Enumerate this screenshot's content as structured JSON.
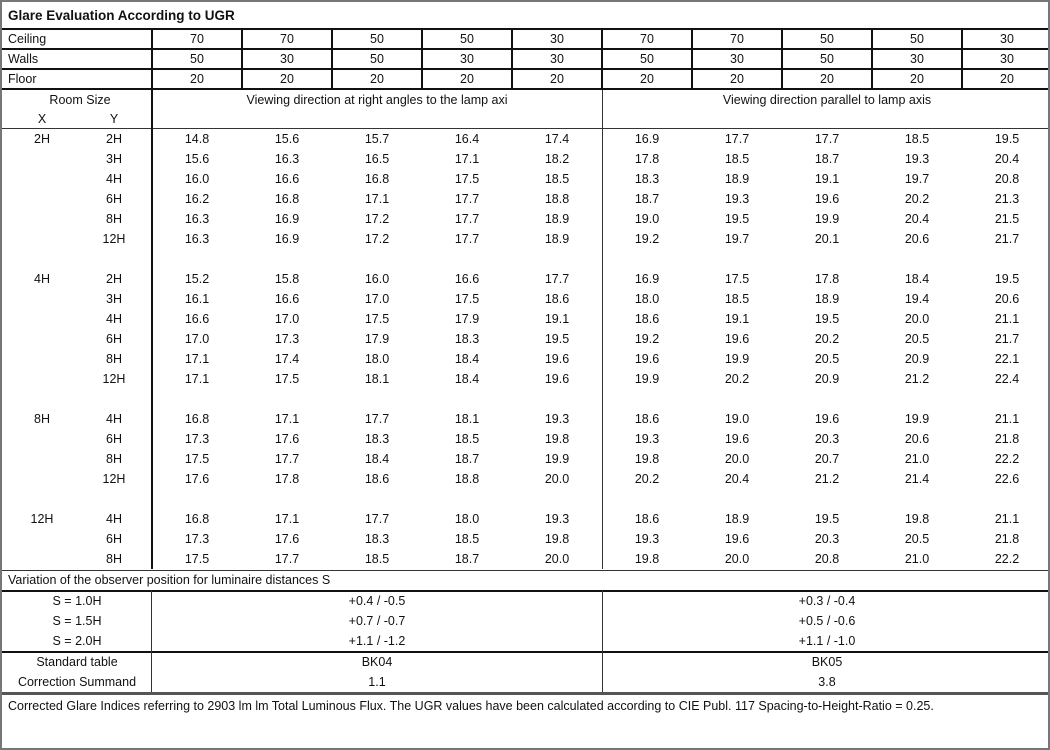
{
  "title": "Glare Evaluation According to UGR",
  "reflectances": [
    {
      "label": "Ceiling",
      "values": [
        "70",
        "70",
        "50",
        "50",
        "30",
        "70",
        "70",
        "50",
        "50",
        "30"
      ]
    },
    {
      "label": "Walls",
      "values": [
        "50",
        "30",
        "50",
        "30",
        "30",
        "50",
        "30",
        "50",
        "30",
        "30"
      ]
    },
    {
      "label": "Floor",
      "values": [
        "20",
        "20",
        "20",
        "20",
        "20",
        "20",
        "20",
        "20",
        "20",
        "20"
      ]
    }
  ],
  "header": {
    "room_size": "Room Size",
    "x": "X",
    "y": "Y",
    "dir_right": "Viewing direction at right angles to the lamp axi",
    "dir_parallel": "Viewing direction parallel to lamp axis"
  },
  "groups": [
    {
      "x": "2H",
      "rows": [
        {
          "y": "2H",
          "v": [
            "14.8",
            "15.6",
            "15.7",
            "16.4",
            "17.4",
            "16.9",
            "17.7",
            "17.7",
            "18.5",
            "19.5"
          ]
        },
        {
          "y": "3H",
          "v": [
            "15.6",
            "16.3",
            "16.5",
            "17.1",
            "18.2",
            "17.8",
            "18.5",
            "18.7",
            "19.3",
            "20.4"
          ]
        },
        {
          "y": "4H",
          "v": [
            "16.0",
            "16.6",
            "16.8",
            "17.5",
            "18.5",
            "18.3",
            "18.9",
            "19.1",
            "19.7",
            "20.8"
          ]
        },
        {
          "y": "6H",
          "v": [
            "16.2",
            "16.8",
            "17.1",
            "17.7",
            "18.8",
            "18.7",
            "19.3",
            "19.6",
            "20.2",
            "21.3"
          ]
        },
        {
          "y": "8H",
          "v": [
            "16.3",
            "16.9",
            "17.2",
            "17.7",
            "18.9",
            "19.0",
            "19.5",
            "19.9",
            "20.4",
            "21.5"
          ]
        },
        {
          "y": "12H",
          "v": [
            "16.3",
            "16.9",
            "17.2",
            "17.7",
            "18.9",
            "19.2",
            "19.7",
            "20.1",
            "20.6",
            "21.7"
          ]
        }
      ]
    },
    {
      "x": "4H",
      "rows": [
        {
          "y": "2H",
          "v": [
            "15.2",
            "15.8",
            "16.0",
            "16.6",
            "17.7",
            "16.9",
            "17.5",
            "17.8",
            "18.4",
            "19.5"
          ]
        },
        {
          "y": "3H",
          "v": [
            "16.1",
            "16.6",
            "17.0",
            "17.5",
            "18.6",
            "18.0",
            "18.5",
            "18.9",
            "19.4",
            "20.6"
          ]
        },
        {
          "y": "4H",
          "v": [
            "16.6",
            "17.0",
            "17.5",
            "17.9",
            "19.1",
            "18.6",
            "19.1",
            "19.5",
            "20.0",
            "21.1"
          ]
        },
        {
          "y": "6H",
          "v": [
            "17.0",
            "17.3",
            "17.9",
            "18.3",
            "19.5",
            "19.2",
            "19.6",
            "20.2",
            "20.5",
            "21.7"
          ]
        },
        {
          "y": "8H",
          "v": [
            "17.1",
            "17.4",
            "18.0",
            "18.4",
            "19.6",
            "19.6",
            "19.9",
            "20.5",
            "20.9",
            "22.1"
          ]
        },
        {
          "y": "12H",
          "v": [
            "17.1",
            "17.5",
            "18.1",
            "18.4",
            "19.6",
            "19.9",
            "20.2",
            "20.9",
            "21.2",
            "22.4"
          ]
        }
      ]
    },
    {
      "x": "8H",
      "rows": [
        {
          "y": "4H",
          "v": [
            "16.8",
            "17.1",
            "17.7",
            "18.1",
            "19.3",
            "18.6",
            "19.0",
            "19.6",
            "19.9",
            "21.1"
          ]
        },
        {
          "y": "6H",
          "v": [
            "17.3",
            "17.6",
            "18.3",
            "18.5",
            "19.8",
            "19.3",
            "19.6",
            "20.3",
            "20.6",
            "21.8"
          ]
        },
        {
          "y": "8H",
          "v": [
            "17.5",
            "17.7",
            "18.4",
            "18.7",
            "19.9",
            "19.8",
            "20.0",
            "20.7",
            "21.0",
            "22.2"
          ]
        },
        {
          "y": "12H",
          "v": [
            "17.6",
            "17.8",
            "18.6",
            "18.8",
            "20.0",
            "20.2",
            "20.4",
            "21.2",
            "21.4",
            "22.6"
          ]
        }
      ]
    },
    {
      "x": "12H",
      "rows": [
        {
          "y": "4H",
          "v": [
            "16.8",
            "17.1",
            "17.7",
            "18.0",
            "19.3",
            "18.6",
            "18.9",
            "19.5",
            "19.8",
            "21.1"
          ]
        },
        {
          "y": "6H",
          "v": [
            "17.3",
            "17.6",
            "18.3",
            "18.5",
            "19.8",
            "19.3",
            "19.6",
            "20.3",
            "20.5",
            "21.8"
          ]
        },
        {
          "y": "8H",
          "v": [
            "17.5",
            "17.7",
            "18.5",
            "18.7",
            "20.0",
            "19.8",
            "20.0",
            "20.8",
            "21.0",
            "22.2"
          ]
        }
      ]
    }
  ],
  "variation": {
    "title": "Variation of the observer position for luminaire distances S",
    "rows": [
      {
        "label": "S = 1.0H",
        "right": "+0.4 / -0.5",
        "parallel": "+0.3 / -0.4"
      },
      {
        "label": "S = 1.5H",
        "right": "+0.7 / -0.7",
        "parallel": "+0.5 / -0.6"
      },
      {
        "label": "S = 2.0H",
        "right": "+1.1 / -1.2",
        "parallel": "+1.1 / -1.0"
      }
    ]
  },
  "standard": {
    "label": "Standard table",
    "right": "BK04",
    "parallel": "BK05",
    "correction_label": "Correction Summand",
    "correction_right": "1.1",
    "correction_parallel": "3.8"
  },
  "footer": "Corrected Glare Indices referring to 2903 lm lm Total Luminous Flux. The UGR values have been calculated according to CIE Publ. 117    Spacing-to-Height-Ratio = 0.25."
}
